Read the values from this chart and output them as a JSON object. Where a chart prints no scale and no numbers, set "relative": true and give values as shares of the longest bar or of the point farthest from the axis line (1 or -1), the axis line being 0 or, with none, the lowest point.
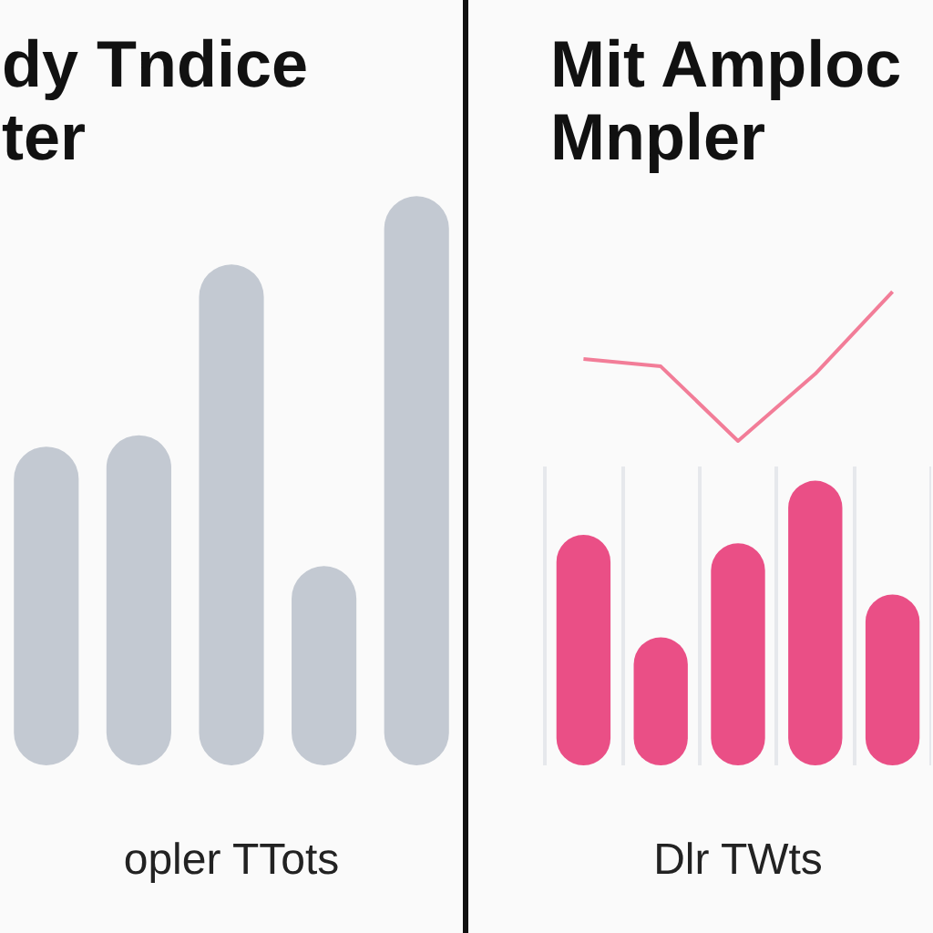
{
  "chart_data": [
    {
      "type": "bar",
      "title": "dy Tndice\nter",
      "xlabel": "opler TTots",
      "categories": [
        null,
        null,
        null,
        null,
        null
      ],
      "relative": true,
      "series": [
        {
          "color": "#c3c9d2",
          "values": [
            0.56,
            0.58,
            0.88,
            0.35,
            1
          ]
        }
      ]
    },
    {
      "type": "bar",
      "xlabel": "Dlr TWts",
      "categories": [
        null,
        null,
        null,
        null,
        null
      ],
      "relative": true,
      "grid": "x",
      "series": [
        {
          "color": "#ea4f86",
          "values": [
            0.81,
            0.45,
            0.78,
            1,
            0.6
          ]
        }
      ]
    },
    {
      "type": "line",
      "title": "Mit Amploc\nMnpler",
      "categories": [
        null,
        null,
        null,
        null,
        null
      ],
      "relative": true,
      "marker": "none",
      "series": [
        {
          "color": "#f27d98",
          "values": [
            0.55,
            0.5,
            0,
            0.45,
            1
          ]
        }
      ]
    }
  ]
}
